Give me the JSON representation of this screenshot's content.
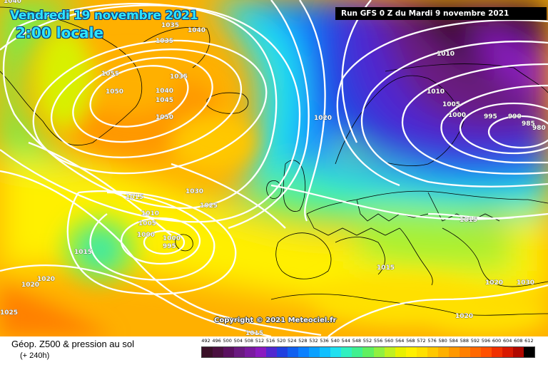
{
  "header": {
    "date_label": "Vendredi 19 novembre 2021",
    "time_label": "2:00 locale",
    "run_label": "Run GFS 0 Z du Mardi 9 novembre 2021"
  },
  "copyright": "Copyright © 2021 Meteociel.fr",
  "footer": {
    "title": "Géop. Z500 & pression au sol",
    "subtitle": "(+ 240h)"
  },
  "legend": {
    "values": [
      "492",
      "496",
      "500",
      "504",
      "508",
      "512",
      "516",
      "520",
      "524",
      "528",
      "532",
      "536",
      "540",
      "544",
      "548",
      "552",
      "556",
      "560",
      "564",
      "568",
      "572",
      "576",
      "580",
      "584",
      "588",
      "592",
      "596",
      "600",
      "604",
      "608",
      "612"
    ],
    "colors": [
      "#3a1028",
      "#4a1040",
      "#5a1060",
      "#6a1a80",
      "#7a1aa0",
      "#8a1ac0",
      "#5028d0",
      "#2040e0",
      "#1060f0",
      "#0a80ff",
      "#0aa0ff",
      "#10c0ff",
      "#20e0f0",
      "#30f0c0",
      "#40f090",
      "#60f060",
      "#90f040",
      "#c0f020",
      "#e8f000",
      "#fff000",
      "#ffe000",
      "#ffc800",
      "#ffb000",
      "#ff9800",
      "#ff8000",
      "#ff6800",
      "#ff5000",
      "#f03000",
      "#d81800",
      "#b00800",
      "#000000"
    ]
  },
  "pressure_labels": [
    "1040",
    "1035",
    "1040",
    "1035",
    "1055",
    "1050",
    "1040",
    "1045",
    "1035",
    "1050",
    "1020",
    "1010",
    "1010",
    "1005",
    "1000",
    "995",
    "990",
    "985",
    "980",
    "1015",
    "1010",
    "1005",
    "1000",
    "1000",
    "995",
    "1030",
    "1025",
    "1015",
    "1015",
    "1015",
    "1020",
    "1020",
    "1020",
    "1025",
    "1015",
    "1020",
    "1030"
  ]
}
